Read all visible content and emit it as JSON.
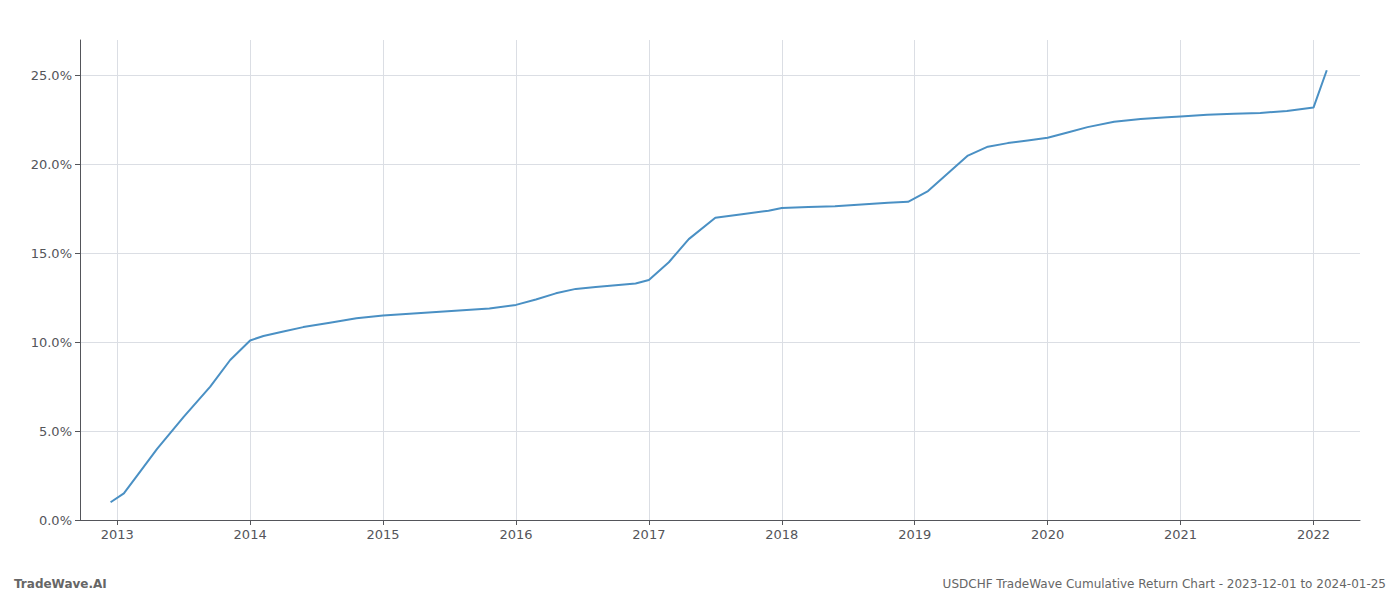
{
  "chart_data": {
    "type": "line",
    "annotations": [
      "TradeWave.AI",
      "USDCHF TradeWave Cumulative Return Chart - 2023-12-01 to 2024-01-25"
    ],
    "color": "#4a90c4",
    "grid": true,
    "x": [
      2012.95,
      2013.05,
      2013.15,
      2013.3,
      2013.5,
      2013.7,
      2013.85,
      2014.0,
      2014.1,
      2014.25,
      2014.4,
      2014.6,
      2014.8,
      2015.0,
      2015.2,
      2015.4,
      2015.6,
      2015.8,
      2016.0,
      2016.15,
      2016.3,
      2016.45,
      2016.6,
      2016.75,
      2016.9,
      2017.0,
      2017.15,
      2017.3,
      2017.5,
      2017.7,
      2017.9,
      2018.0,
      2018.2,
      2018.4,
      2018.6,
      2018.8,
      2018.95,
      2019.1,
      2019.25,
      2019.4,
      2019.55,
      2019.7,
      2019.85,
      2020.0,
      2020.15,
      2020.3,
      2020.5,
      2020.7,
      2020.9,
      2021.0,
      2021.2,
      2021.4,
      2021.6,
      2021.8,
      2022.0,
      2022.1
    ],
    "values": [
      1.0,
      1.5,
      2.5,
      4.0,
      5.8,
      7.5,
      9.0,
      10.1,
      10.35,
      10.6,
      10.85,
      11.1,
      11.35,
      11.5,
      11.6,
      11.7,
      11.8,
      11.9,
      12.1,
      12.4,
      12.75,
      13.0,
      13.1,
      13.2,
      13.3,
      13.5,
      14.5,
      15.8,
      17.0,
      17.2,
      17.4,
      17.55,
      17.6,
      17.65,
      17.75,
      17.85,
      17.9,
      18.5,
      19.5,
      20.5,
      21.0,
      21.2,
      21.35,
      21.5,
      21.8,
      22.1,
      22.4,
      22.55,
      22.65,
      22.7,
      22.8,
      22.85,
      22.9,
      23.0,
      23.2,
      25.3
    ],
    "xlim": [
      2012.72,
      2022.35
    ],
    "xticks": [
      2013,
      2014,
      2015,
      2016,
      2017,
      2018,
      2019,
      2020,
      2021,
      2022
    ],
    "ylim": [
      0.0,
      27.0
    ],
    "yticks": [
      {
        "value": 0.0,
        "label": "0.0%"
      },
      {
        "value": 5.0,
        "label": "5.0%"
      },
      {
        "value": 10.0,
        "label": "10.0%"
      },
      {
        "value": 15.0,
        "label": "15.0%"
      },
      {
        "value": 20.0,
        "label": "20.0%"
      },
      {
        "value": 25.0,
        "label": "25.0%"
      }
    ]
  }
}
